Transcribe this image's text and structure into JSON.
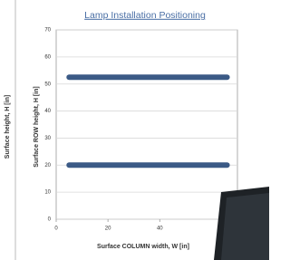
{
  "left_panel": {
    "ylabel": "Surface height, H [in]"
  },
  "chart_data": {
    "type": "line",
    "title": "Lamp Installation Positioning",
    "xlabel": "Surface COLUMN width, W [in]",
    "ylabel": "Surface ROW height, H [in]",
    "series": [
      {
        "color": "#3b5a86",
        "x": [
          5,
          66
        ],
        "values": [
          52.5,
          52.5
        ]
      },
      {
        "color": "#3b5a86",
        "x": [
          5,
          66
        ],
        "values": [
          20,
          20
        ]
      }
    ],
    "xlim": [
      0,
      70
    ],
    "xticks": [
      0,
      20,
      40
    ],
    "ylim": [
      0,
      70
    ],
    "yticks": [
      0,
      10,
      20,
      30,
      40,
      50,
      60,
      70
    ],
    "grid": true
  }
}
